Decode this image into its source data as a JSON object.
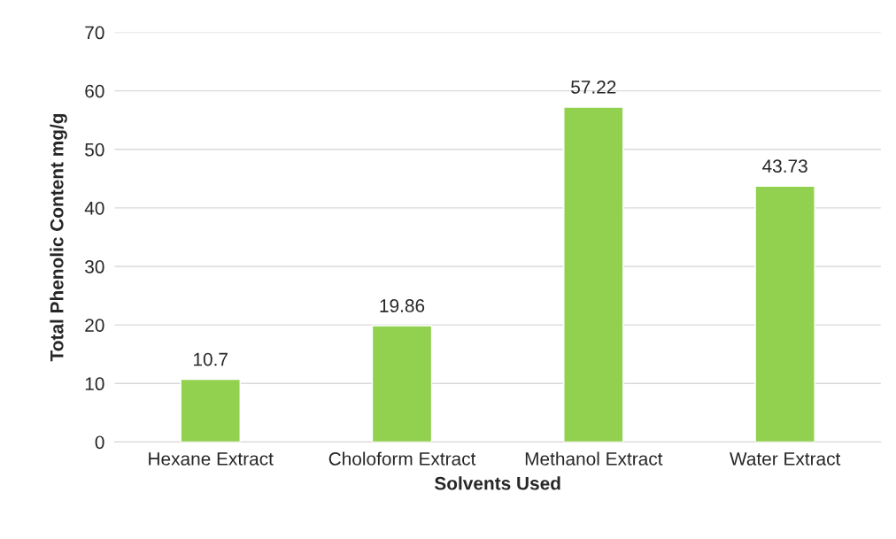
{
  "chart_data": {
    "type": "bar",
    "xlabel": "Solvents Used",
    "ylabel": "Total Phenolic Content mg/g",
    "categories": [
      "Hexane Extract",
      "Choloform Extract",
      "Methanol Extract",
      "Water Extract"
    ],
    "values": [
      10.7,
      19.86,
      57.22,
      43.73
    ],
    "color": "#92d050",
    "ylim": [
      0,
      70
    ],
    "yticks": [
      0,
      10,
      20,
      30,
      40,
      50,
      60,
      70
    ],
    "grid": "y",
    "data_labels": true
  }
}
